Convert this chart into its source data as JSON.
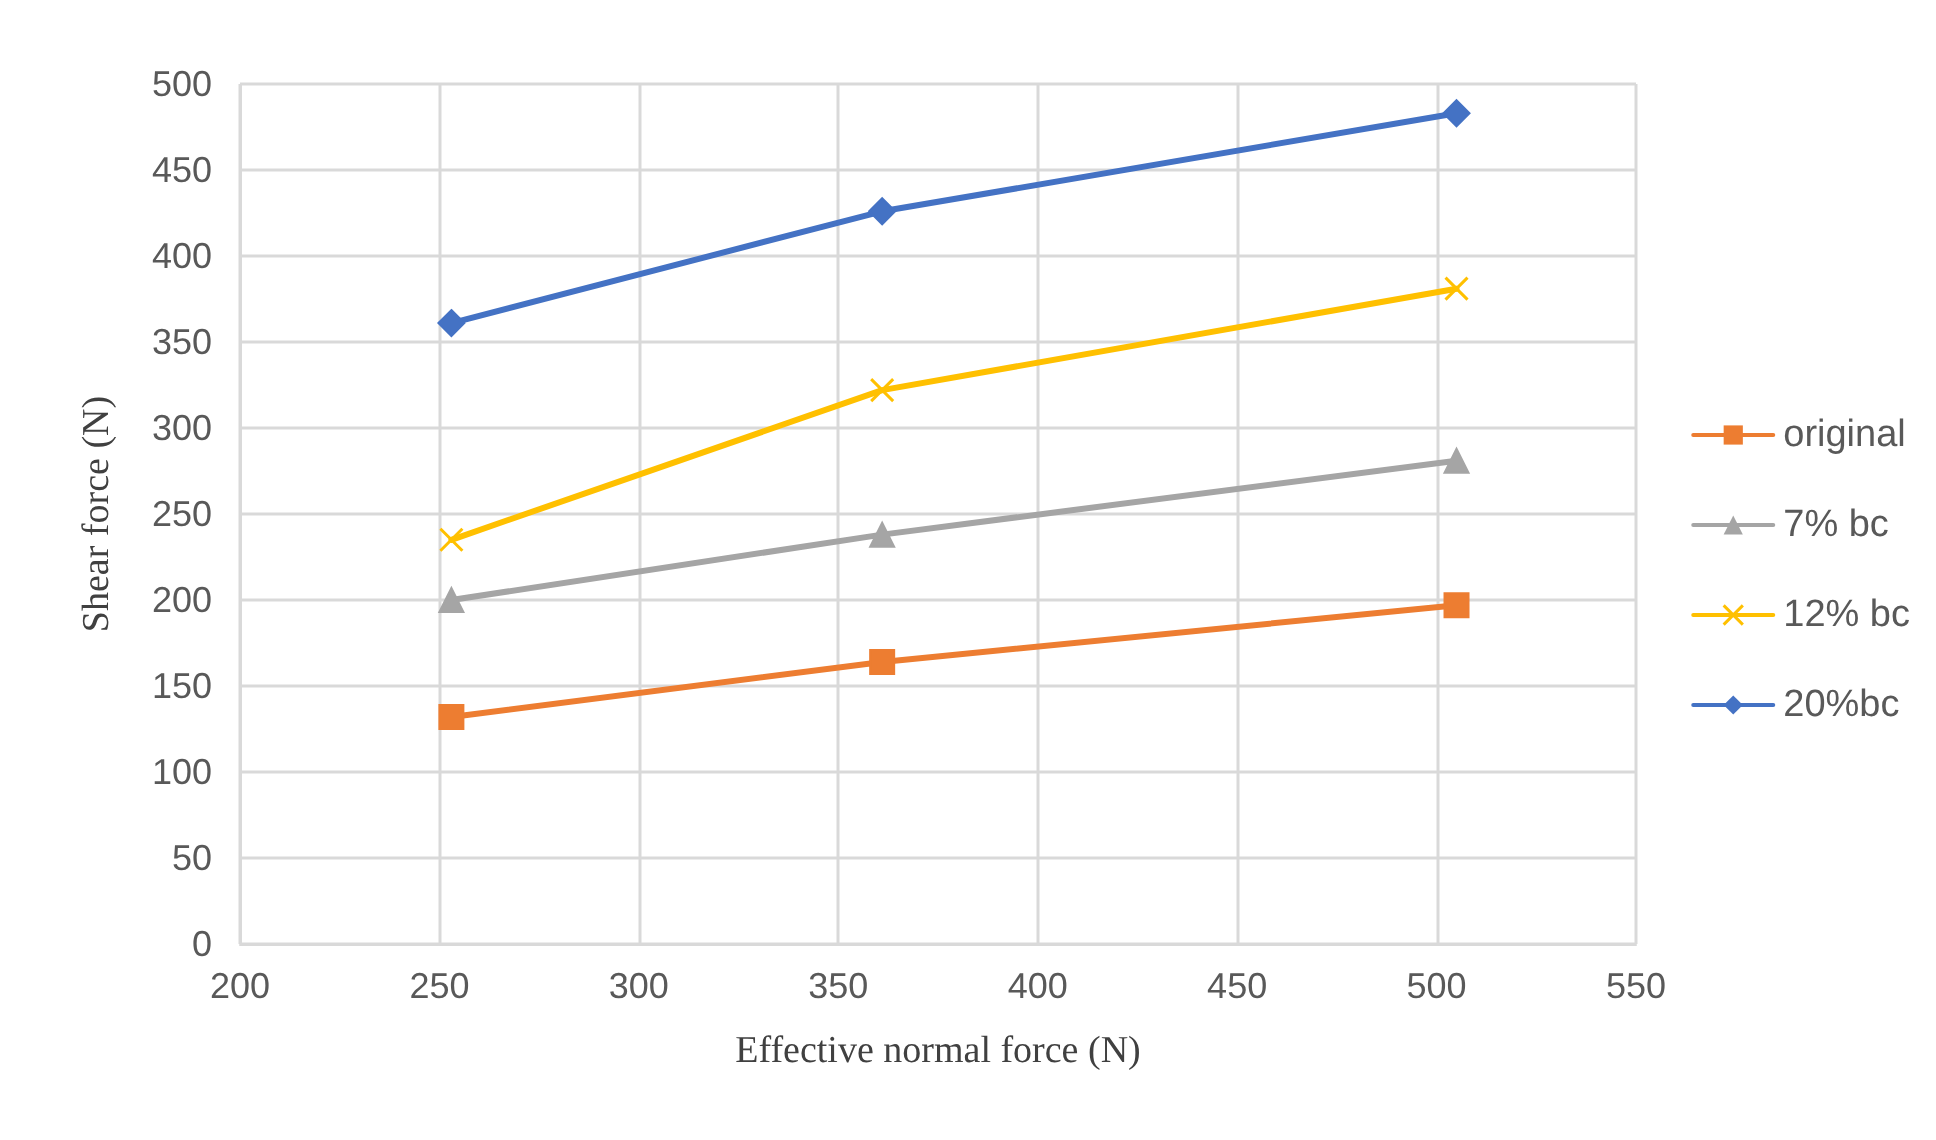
{
  "chart_data": {
    "type": "line",
    "xlabel": "Effective normal force (N)",
    "ylabel": "Shear force (N)",
    "xlim": [
      200,
      550
    ],
    "xticks": [
      200,
      250,
      300,
      350,
      400,
      450,
      500,
      550
    ],
    "ylim": [
      0,
      500
    ],
    "yticks": [
      0,
      50,
      100,
      150,
      200,
      250,
      300,
      350,
      400,
      450,
      500
    ],
    "grid": true,
    "legend": "right",
    "line_style": "solid",
    "x": [
      253,
      361,
      505
    ],
    "series": [
      {
        "name": "original",
        "color": "#ed7d31",
        "marker": "square",
        "values": [
          132,
          164,
          197
        ]
      },
      {
        "name": "7% bc",
        "color": "#a5a5a5",
        "marker": "triangle",
        "values": [
          200,
          238,
          281
        ]
      },
      {
        "name": "12% bc",
        "color": "#ffc000",
        "marker": "cross",
        "values": [
          235,
          322,
          381
        ]
      },
      {
        "name": "20%bc",
        "color": "#4472c4",
        "marker": "diamond",
        "values": [
          361,
          426,
          483
        ]
      }
    ]
  }
}
